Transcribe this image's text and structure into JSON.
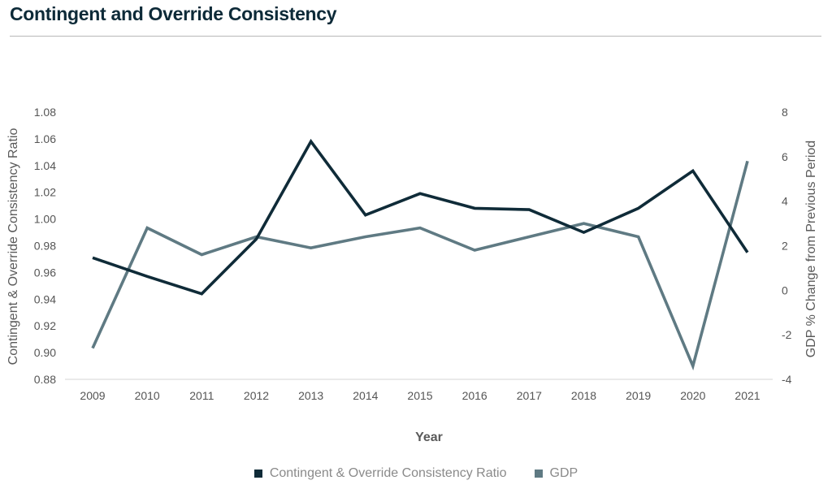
{
  "title": "Contingent and Override Consistency",
  "chart_data": {
    "type": "line",
    "x": [
      "2009",
      "2010",
      "2011",
      "2012",
      "2013",
      "2014",
      "2015",
      "2016",
      "2017",
      "2018",
      "2019",
      "2020",
      "2021"
    ],
    "xlabel": "Year",
    "y_left": {
      "label": "Contingent & Override Consistency Ratio",
      "ticks": [
        "0.88",
        "0.90",
        "0.92",
        "0.94",
        "0.96",
        "0.98",
        "1.00",
        "1.02",
        "1.04",
        "1.06",
        "1.08"
      ],
      "range": [
        0.88,
        1.08
      ]
    },
    "y_right": {
      "label": "GDP % Change from Previous Period",
      "ticks": [
        "-4",
        "-2",
        "0",
        "2",
        "4",
        "6",
        "8"
      ],
      "range": [
        -4,
        8
      ]
    },
    "series": [
      {
        "name": "Contingent & Override Consistency Ratio",
        "axis": "left",
        "color": "#0f2b38",
        "values": [
          0.971,
          0.957,
          0.944,
          0.985,
          1.058,
          1.003,
          1.019,
          1.008,
          1.007,
          0.99,
          1.008,
          1.036,
          0.975
        ]
      },
      {
        "name": "GDP",
        "axis": "right",
        "color": "#5f7a83",
        "values": [
          -2.6,
          2.8,
          1.6,
          2.4,
          1.9,
          2.4,
          2.8,
          1.8,
          2.4,
          3.0,
          2.4,
          -3.4,
          5.8
        ]
      }
    ],
    "legend_position": "bottom",
    "grid": false
  }
}
